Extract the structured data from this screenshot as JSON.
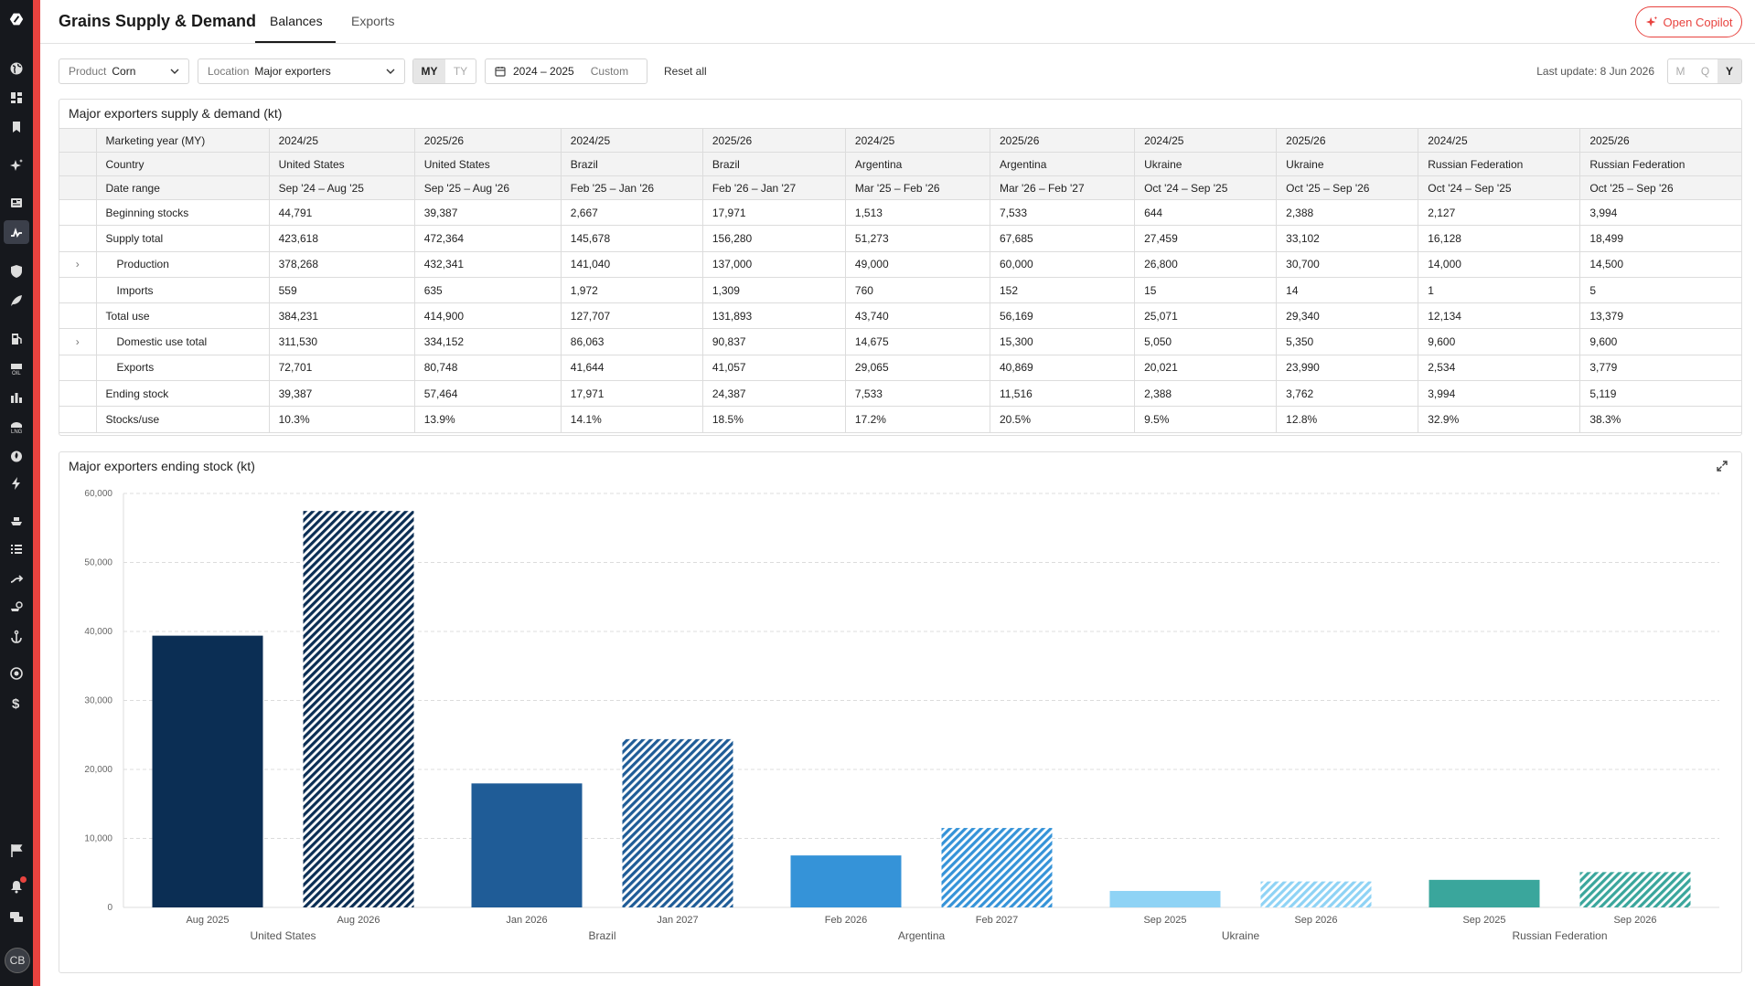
{
  "app": {
    "title": "Grains Supply & Demand"
  },
  "tabs": [
    {
      "label": "Balances"
    },
    {
      "label": "Exports"
    }
  ],
  "copilot": {
    "label": "Open Copilot"
  },
  "user": {
    "initials": "CB"
  },
  "filters": {
    "product": {
      "label": "Product",
      "value": "Corn"
    },
    "location": {
      "label": "Location",
      "value": "Major exporters"
    },
    "year_type": {
      "options": [
        "MY",
        "TY"
      ],
      "selected": "MY"
    },
    "date": {
      "range": "2024 – 2025",
      "custom": "Custom"
    },
    "reset": "Reset all",
    "last_update": "Last update: 8 Jun 2026",
    "granularity": {
      "options": [
        "M",
        "Q",
        "Y"
      ],
      "selected": "Y"
    }
  },
  "table": {
    "title": "Major exporters supply & demand (kt)",
    "header_rows": [
      {
        "label": "Marketing year (MY)",
        "cells": [
          "2024/25",
          "2025/26",
          "2024/25",
          "2025/26",
          "2024/25",
          "2025/26",
          "2024/25",
          "2025/26",
          "2024/25",
          "2025/26"
        ]
      },
      {
        "label": "Country",
        "cells": [
          "United States",
          "United States",
          "Brazil",
          "Brazil",
          "Argentina",
          "Argentina",
          "Ukraine",
          "Ukraine",
          "Russian Federation",
          "Russian Federation"
        ]
      },
      {
        "label": "Date range",
        "cells": [
          "Sep '24 – Aug '25",
          "Sep '25 – Aug '26",
          "Feb '25 – Jan '26",
          "Feb '26 – Jan '27",
          "Mar '25 – Feb '26",
          "Mar '26 – Feb '27",
          "Oct '24 – Sep '25",
          "Oct '25 – Sep '26",
          "Oct '24 – Sep '25",
          "Oct '25 – Sep '26"
        ]
      }
    ],
    "rows": [
      {
        "label": "Beginning stocks",
        "indent": false,
        "expandable": false,
        "cells": [
          "44,791",
          "39,387",
          "2,667",
          "17,971",
          "1,513",
          "7,533",
          "644",
          "2,388",
          "2,127",
          "3,994"
        ]
      },
      {
        "label": "Supply total",
        "indent": false,
        "expandable": false,
        "cells": [
          "423,618",
          "472,364",
          "145,678",
          "156,280",
          "51,273",
          "67,685",
          "27,459",
          "33,102",
          "16,128",
          "18,499"
        ]
      },
      {
        "label": "Production",
        "indent": true,
        "expandable": true,
        "cells": [
          "378,268",
          "432,341",
          "141,040",
          "137,000",
          "49,000",
          "60,000",
          "26,800",
          "30,700",
          "14,000",
          "14,500"
        ]
      },
      {
        "label": "Imports",
        "indent": true,
        "expandable": false,
        "cells": [
          "559",
          "635",
          "1,972",
          "1,309",
          "760",
          "152",
          "15",
          "14",
          "1",
          "5"
        ]
      },
      {
        "label": "Total use",
        "indent": false,
        "expandable": false,
        "cells": [
          "384,231",
          "414,900",
          "127,707",
          "131,893",
          "43,740",
          "56,169",
          "25,071",
          "29,340",
          "12,134",
          "13,379"
        ]
      },
      {
        "label": "Domestic use total",
        "indent": true,
        "expandable": true,
        "cells": [
          "311,530",
          "334,152",
          "86,063",
          "90,837",
          "14,675",
          "15,300",
          "5,050",
          "5,350",
          "9,600",
          "9,600"
        ]
      },
      {
        "label": "Exports",
        "indent": true,
        "expandable": false,
        "cells": [
          "72,701",
          "80,748",
          "41,644",
          "41,057",
          "29,065",
          "40,869",
          "20,021",
          "23,990",
          "2,534",
          "3,779"
        ]
      },
      {
        "label": "Ending stock",
        "indent": false,
        "expandable": false,
        "cells": [
          "39,387",
          "57,464",
          "17,971",
          "24,387",
          "7,533",
          "11,516",
          "2,388",
          "3,762",
          "3,994",
          "5,119"
        ]
      },
      {
        "label": "Stocks/use",
        "indent": false,
        "expandable": false,
        "cells": [
          "10.3%",
          "13.9%",
          "14.1%",
          "18.5%",
          "17.2%",
          "20.5%",
          "9.5%",
          "12.8%",
          "32.9%",
          "38.3%"
        ]
      }
    ],
    "expand_glyph": "›"
  },
  "chart_data": {
    "type": "bar",
    "title": "Major exporters ending stock (kt)",
    "ylim": [
      0,
      60000
    ],
    "yticks": [
      0,
      10000,
      20000,
      30000,
      40000,
      50000,
      60000
    ],
    "ytick_labels": [
      "0",
      "10,000",
      "20,000",
      "30,000",
      "40,000",
      "50,000",
      "60,000"
    ],
    "groups": [
      {
        "name": "United States",
        "color": "#0b2e54",
        "bars": [
          {
            "label": "Aug 2025",
            "value": 39387,
            "hatched": false
          },
          {
            "label": "Aug 2026",
            "value": 57464,
            "hatched": true
          }
        ]
      },
      {
        "name": "Brazil",
        "color": "#1f5c97",
        "bars": [
          {
            "label": "Jan 2026",
            "value": 17971,
            "hatched": false
          },
          {
            "label": "Jan 2027",
            "value": 24387,
            "hatched": true
          }
        ]
      },
      {
        "name": "Argentina",
        "color": "#3593d8",
        "bars": [
          {
            "label": "Feb 2026",
            "value": 7533,
            "hatched": false
          },
          {
            "label": "Feb 2027",
            "value": 11516,
            "hatched": true
          }
        ]
      },
      {
        "name": "Ukraine",
        "color": "#8fd3f5",
        "bars": [
          {
            "label": "Sep 2025",
            "value": 2388,
            "hatched": false
          },
          {
            "label": "Sep 2026",
            "value": 3762,
            "hatched": true
          }
        ]
      },
      {
        "name": "Russian Federation",
        "color": "#3aa69c",
        "bars": [
          {
            "label": "Sep 2025",
            "value": 3994,
            "hatched": false
          },
          {
            "label": "Sep 2026",
            "value": 5119,
            "hatched": true
          }
        ]
      }
    ],
    "grid": true,
    "legend": "none"
  }
}
